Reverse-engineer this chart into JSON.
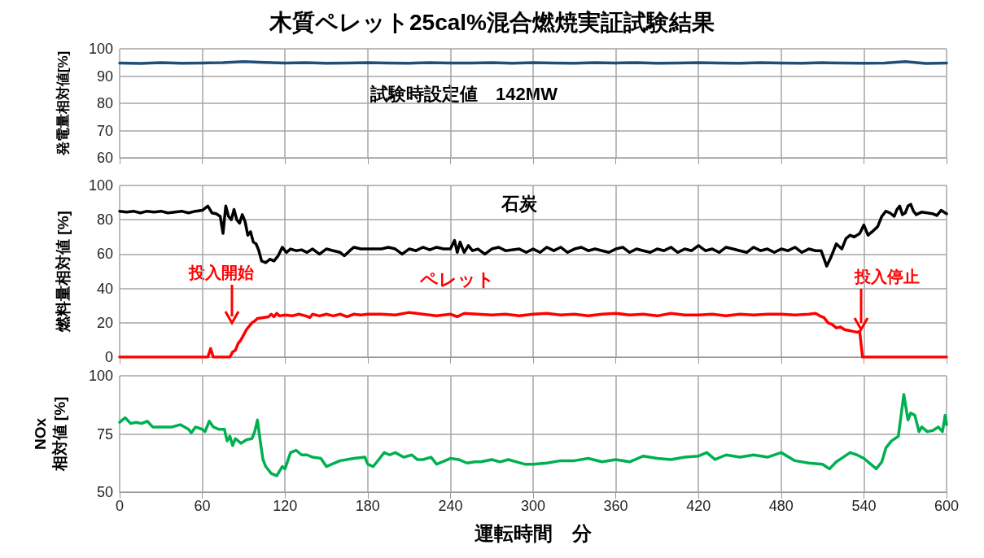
{
  "chart_data": [
    {
      "type": "line",
      "title": "木質ペレット25cal%混合燃焼実証試験結果",
      "ylabel": "発電量相対値[%]",
      "xlim": [
        0,
        600
      ],
      "xticks": [
        0,
        60,
        120,
        180,
        240,
        300,
        360,
        420,
        480,
        540,
        600
      ],
      "ylim": [
        60,
        100
      ],
      "yticks": [
        60,
        70,
        80,
        90,
        100
      ],
      "grid": true,
      "tick_labels": "y",
      "marker": "none",
      "line_style": "solid",
      "annotations": [
        "試験時設定値　142MW"
      ],
      "series": [
        {
          "color": "#1f4e79",
          "x": [
            0,
            15,
            30,
            45,
            60,
            75,
            90,
            105,
            120,
            135,
            150,
            165,
            180,
            195,
            210,
            225,
            240,
            255,
            270,
            285,
            300,
            315,
            330,
            345,
            360,
            375,
            390,
            405,
            420,
            435,
            450,
            465,
            480,
            495,
            510,
            525,
            540,
            555,
            570,
            585,
            600
          ],
          "values": [
            94.8,
            94.6,
            94.9,
            94.7,
            94.8,
            94.9,
            95.3,
            95.0,
            94.8,
            94.9,
            94.7,
            94.8,
            94.9,
            94.8,
            94.7,
            94.9,
            94.8,
            94.8,
            94.9,
            94.7,
            94.9,
            94.8,
            94.7,
            94.9,
            94.8,
            94.9,
            94.7,
            94.8,
            94.9,
            94.8,
            94.7,
            94.9,
            94.8,
            94.7,
            94.9,
            94.8,
            94.7,
            94.8,
            95.3,
            94.6,
            94.8
          ]
        }
      ]
    },
    {
      "type": "line",
      "ylabel": "燃料量相対値 [%]",
      "xlim": [
        0,
        600
      ],
      "xticks": [
        0,
        60,
        120,
        180,
        240,
        300,
        360,
        420,
        480,
        540,
        600
      ],
      "ylim": [
        0,
        100
      ],
      "yticks": [
        0,
        20,
        40,
        60,
        80,
        100
      ],
      "grid": true,
      "tick_labels": "y",
      "marker": "none",
      "line_style": "solid",
      "annotations": [
        "投入開始",
        "投入停止"
      ],
      "series": [
        {
          "name": "石炭",
          "color": "#000000",
          "x": [
            0,
            5,
            10,
            15,
            20,
            25,
            30,
            35,
            40,
            45,
            50,
            55,
            60,
            64,
            67,
            70,
            73,
            75,
            77,
            79,
            81,
            83,
            85,
            87,
            89,
            91,
            93,
            95,
            97,
            99,
            101,
            103,
            106,
            109,
            112,
            115,
            118,
            121,
            124,
            128,
            132,
            136,
            140,
            145,
            150,
            155,
            160,
            163,
            167,
            170,
            175,
            180,
            190,
            195,
            200,
            205,
            210,
            215,
            220,
            225,
            230,
            235,
            240,
            243,
            245,
            247,
            250,
            253,
            256,
            260,
            265,
            270,
            275,
            280,
            290,
            295,
            300,
            305,
            310,
            315,
            320,
            325,
            330,
            335,
            340,
            345,
            350,
            355,
            360,
            365,
            370,
            375,
            380,
            385,
            390,
            395,
            400,
            405,
            410,
            415,
            420,
            425,
            430,
            435,
            440,
            445,
            450,
            455,
            460,
            465,
            470,
            475,
            480,
            485,
            490,
            495,
            500,
            505,
            509,
            513,
            516,
            520,
            524,
            527,
            530,
            533,
            537,
            540,
            543,
            546,
            550,
            553,
            556,
            559,
            562,
            564,
            566,
            568,
            570,
            572,
            574,
            576,
            578,
            582,
            586,
            590,
            593,
            596,
            600
          ],
          "values": [
            85,
            84.5,
            85,
            84,
            85,
            84.5,
            85,
            84,
            84.5,
            85,
            84,
            85,
            85.5,
            88,
            84,
            83.5,
            82,
            72,
            88,
            82,
            80,
            86,
            80,
            78,
            83,
            79,
            71,
            73,
            67,
            66,
            62,
            56,
            55,
            57,
            56,
            59,
            64,
            61,
            63,
            62,
            62.5,
            61,
            63,
            60,
            63,
            62,
            61,
            59,
            62,
            64,
            63,
            63,
            63,
            64,
            63,
            60,
            63,
            62,
            64,
            62.5,
            64,
            63,
            63,
            68,
            61,
            67,
            61,
            65,
            62,
            63,
            60,
            63,
            64,
            62,
            63,
            61,
            63,
            61,
            64,
            62,
            64,
            61,
            63,
            64,
            62,
            63,
            62,
            61,
            63,
            64,
            61,
            63,
            62,
            61,
            63,
            62,
            64,
            61,
            63,
            62,
            65,
            62,
            63,
            61,
            64,
            63,
            62,
            61,
            64,
            62,
            63,
            61,
            63,
            62,
            64,
            61,
            63,
            62,
            62,
            53,
            58,
            66,
            63,
            69,
            71,
            70,
            72,
            77,
            71,
            73,
            76,
            82,
            85,
            84,
            82,
            86,
            88,
            83,
            84,
            88,
            89,
            85,
            83,
            84.5,
            84,
            83.5,
            82.5,
            85.5,
            83.5
          ]
        },
        {
          "name": "ペレット",
          "color": "#ff0000",
          "x": [
            0,
            64,
            66,
            68,
            80,
            82,
            84,
            86,
            88,
            90,
            92,
            94,
            96,
            98,
            100,
            104,
            108,
            110,
            112,
            114,
            116,
            120,
            125,
            130,
            135,
            138,
            140,
            145,
            150,
            155,
            160,
            165,
            170,
            175,
            180,
            190,
            200,
            210,
            220,
            230,
            240,
            245,
            250,
            260,
            270,
            280,
            290,
            300,
            310,
            320,
            330,
            340,
            350,
            360,
            370,
            380,
            390,
            400,
            410,
            420,
            430,
            440,
            450,
            460,
            470,
            480,
            490,
            500,
            505,
            508,
            511,
            514,
            517,
            520,
            523,
            526,
            529,
            532,
            535,
            537,
            539,
            600
          ],
          "values": [
            0,
            0,
            5,
            0,
            0,
            3,
            4,
            8,
            10,
            13,
            16,
            18,
            20,
            21,
            22.5,
            23,
            23.5,
            25,
            23.5,
            25.5,
            24,
            24.5,
            24,
            25,
            24,
            23,
            25,
            24,
            25,
            24,
            25,
            23.5,
            25,
            24.5,
            25,
            25,
            24.5,
            26,
            25,
            24,
            25,
            23.5,
            25.5,
            25,
            24.5,
            25,
            24,
            25,
            25.5,
            24.5,
            25,
            24,
            25,
            25.5,
            24.5,
            25,
            24,
            25.5,
            24.5,
            24.5,
            25,
            24,
            25,
            24.5,
            25,
            25,
            24.5,
            25,
            25.5,
            24,
            23,
            20,
            19,
            17,
            17.5,
            16,
            15.5,
            15,
            14.5,
            15,
            0,
            0
          ]
        }
      ]
    },
    {
      "type": "line",
      "xlabel": "運転時間　分",
      "ylabel": "NOx\n相対値 [%]",
      "xlim": [
        0,
        600
      ],
      "xticks": [
        0,
        60,
        120,
        180,
        240,
        300,
        360,
        420,
        480,
        540,
        600
      ],
      "ylim": [
        50,
        100
      ],
      "yticks": [
        50,
        75,
        100
      ],
      "grid": true,
      "marker": "none",
      "line_style": "solid",
      "series": [
        {
          "color": "#00b050",
          "x": [
            0,
            4,
            8,
            12,
            16,
            20,
            24,
            30,
            38,
            44,
            50,
            52,
            55,
            60,
            62,
            65,
            68,
            72,
            76,
            78,
            80,
            82,
            84,
            88,
            92,
            96,
            98,
            100,
            102,
            104,
            106,
            110,
            114,
            118,
            120,
            124,
            128,
            132,
            136,
            140,
            146,
            150,
            154,
            160,
            170,
            178,
            180,
            184,
            188,
            192,
            196,
            200,
            206,
            212,
            216,
            220,
            226,
            230,
            234,
            240,
            246,
            252,
            258,
            262,
            270,
            276,
            282,
            288,
            294,
            300,
            310,
            320,
            330,
            340,
            350,
            360,
            370,
            380,
            390,
            400,
            410,
            420,
            426,
            432,
            440,
            450,
            460,
            470,
            480,
            490,
            500,
            510,
            515,
            520,
            525,
            530,
            535,
            540,
            545,
            549,
            553,
            556,
            560,
            565,
            569,
            572,
            574,
            577,
            580,
            582,
            586,
            590,
            594,
            597,
            599,
            600
          ],
          "values": [
            80,
            82,
            79.5,
            80,
            79.5,
            80.5,
            78,
            78,
            78,
            79,
            77,
            75.5,
            78,
            77,
            76,
            80.5,
            78,
            77,
            77,
            72,
            74,
            70,
            73,
            71,
            72.5,
            73,
            76,
            81,
            72,
            64,
            61,
            58,
            57,
            61,
            60,
            67,
            68,
            66,
            66,
            65,
            64.5,
            61,
            62,
            63.5,
            64.5,
            65,
            62,
            61,
            64,
            67,
            66,
            67,
            65,
            66,
            64,
            64,
            65,
            62,
            63,
            64.5,
            64,
            62.5,
            63,
            63,
            64,
            63,
            64,
            63,
            62,
            62,
            62.5,
            63.5,
            63.5,
            64.5,
            63,
            64,
            63,
            65.5,
            64.5,
            64,
            65,
            65.5,
            67,
            64,
            66,
            65,
            66,
            65,
            67,
            63.5,
            62.5,
            62,
            60,
            63,
            65,
            67,
            66,
            64.5,
            62,
            60,
            63,
            69,
            72,
            74,
            92,
            81,
            84,
            83,
            76,
            78,
            76,
            76.5,
            78,
            76,
            83,
            79
          ]
        }
      ]
    }
  ]
}
